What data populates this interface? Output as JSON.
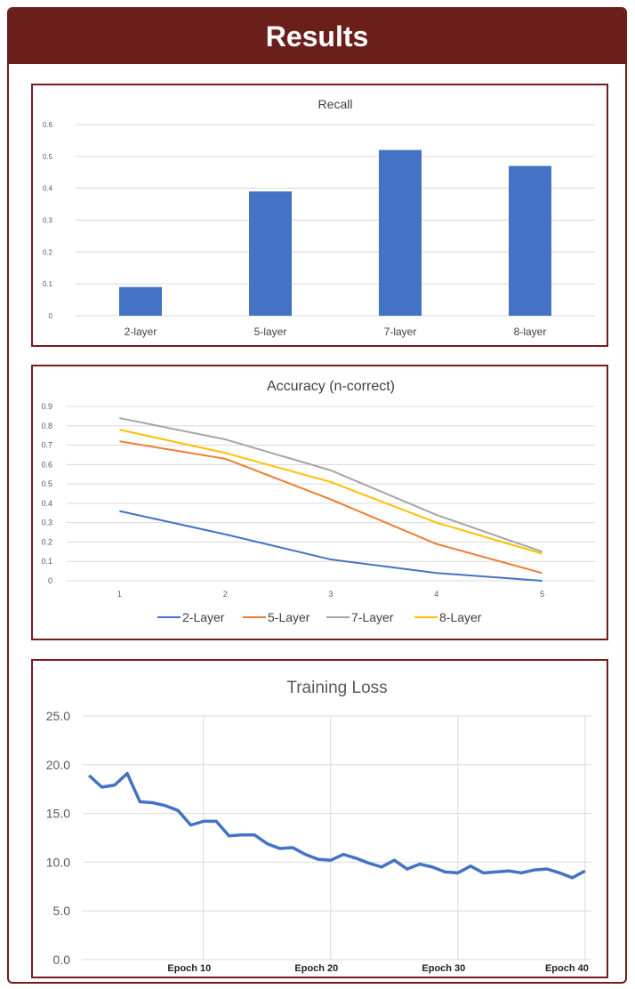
{
  "header": {
    "title": "Results"
  },
  "chart_data": [
    {
      "type": "bar",
      "title": "Recall",
      "categories": [
        "2-layer",
        "5-layer",
        "7-layer",
        "8-layer"
      ],
      "values": [
        0.09,
        0.39,
        0.52,
        0.47
      ],
      "ylim": [
        0,
        0.6
      ],
      "yticks": [
        "0",
        "0.1",
        "0.2",
        "0.3",
        "0.4",
        "0.5",
        "0.6"
      ],
      "grid": true,
      "bar_color": "#4472c4"
    },
    {
      "type": "line",
      "title": "Accuracy (n-correct)",
      "x": [
        1,
        2,
        3,
        4,
        5
      ],
      "xticks": [
        "1",
        "2",
        "3",
        "4",
        "5"
      ],
      "ylim": [
        0,
        0.9
      ],
      "yticks": [
        "0",
        "0.1",
        "0.2",
        "0.3",
        "0.4",
        "0.5",
        "0.6",
        "0.7",
        "0.8",
        "0.9"
      ],
      "grid": true,
      "legend": "bottom",
      "series": [
        {
          "name": "2-Layer",
          "color": "#4472c4",
          "values": [
            0.36,
            0.24,
            0.11,
            0.04,
            0.0
          ]
        },
        {
          "name": "5-Layer",
          "color": "#ed7d31",
          "values": [
            0.72,
            0.63,
            0.42,
            0.19,
            0.04
          ]
        },
        {
          "name": "7-Layer",
          "color": "#a5a5a5",
          "values": [
            0.84,
            0.73,
            0.57,
            0.34,
            0.15
          ]
        },
        {
          "name": "8-Layer",
          "color": "#ffc000",
          "values": [
            0.78,
            0.66,
            0.51,
            0.3,
            0.14
          ]
        }
      ]
    },
    {
      "type": "line",
      "title": "Training Loss",
      "x": [
        1,
        2,
        3,
        4,
        5,
        6,
        7,
        8,
        9,
        10,
        11,
        12,
        13,
        14,
        15,
        16,
        17,
        18,
        19,
        20,
        21,
        22,
        23,
        24,
        25,
        26,
        27,
        28,
        29,
        30,
        31,
        32,
        33,
        34,
        35,
        36,
        37,
        38,
        39,
        40
      ],
      "xticks": [
        "Epoch 10",
        "Epoch 20",
        "Epoch 30",
        "Epoch 40"
      ],
      "xtick_values": [
        10,
        20,
        30,
        40
      ],
      "ylim": [
        0,
        25
      ],
      "yticks": [
        "0.0",
        "5.0",
        "10.0",
        "15.0",
        "20.0",
        "25.0"
      ],
      "grid": true,
      "series": [
        {
          "color": "#4472c4",
          "values": [
            18.9,
            17.7,
            17.9,
            19.1,
            16.2,
            16.1,
            15.8,
            15.3,
            13.8,
            14.2,
            14.2,
            12.7,
            12.8,
            12.8,
            11.9,
            11.4,
            11.5,
            10.8,
            10.3,
            10.2,
            10.8,
            10.4,
            9.9,
            9.5,
            10.2,
            9.3,
            9.8,
            9.5,
            9.0,
            8.9,
            9.6,
            8.9,
            9.0,
            9.1,
            8.9,
            9.2,
            9.3,
            8.9,
            8.4,
            9.1
          ]
        }
      ]
    }
  ]
}
